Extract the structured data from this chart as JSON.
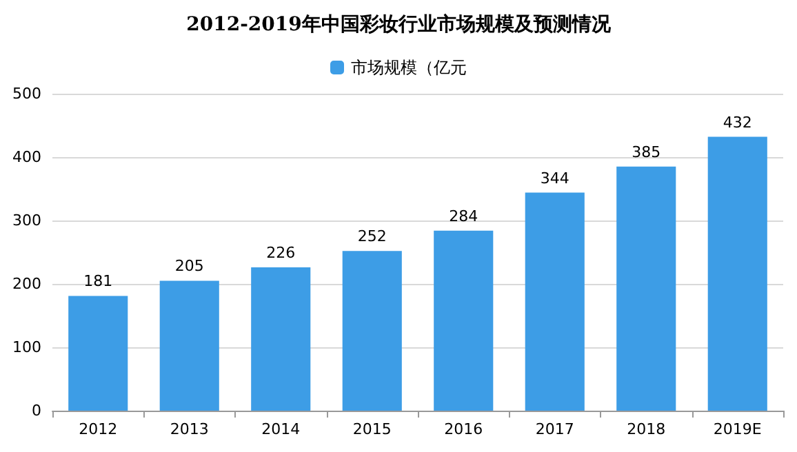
{
  "chart_data": {
    "type": "bar",
    "title": "2012-2019年中国彩妆行业市场规模及预测情况",
    "categories": [
      "2012",
      "2013",
      "2014",
      "2015",
      "2016",
      "2017",
      "2018",
      "2019E"
    ],
    "series": [
      {
        "name": "市场规模（亿元",
        "color": "#3d9de6",
        "values": [
          181,
          205,
          226,
          252,
          284,
          344,
          385,
          432
        ]
      }
    ],
    "ylim": [
      0,
      500
    ],
    "yticks": [
      0,
      100,
      200,
      300,
      400,
      500
    ],
    "grid": "y",
    "legend": "top",
    "data_labels": true
  }
}
